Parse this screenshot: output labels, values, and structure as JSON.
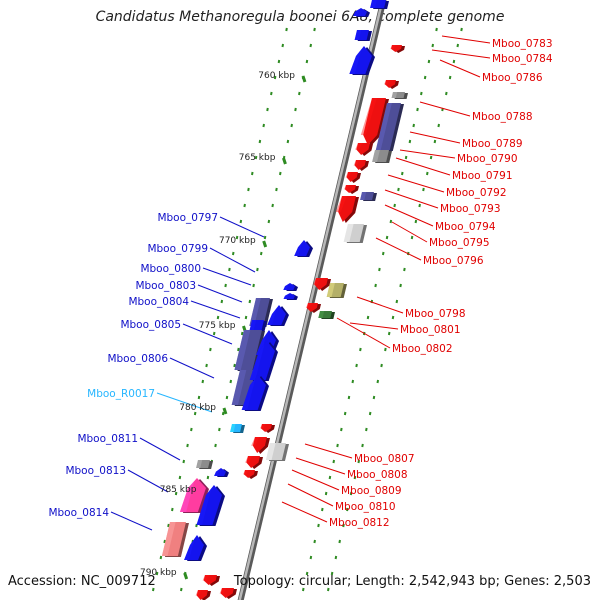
{
  "title": "Candidatus Methanoregula boonei 6A8, complete genome",
  "footer": {
    "accession": "Accession: NC_009712",
    "info": "Topology: circular; Length: 2,542,943 bp; Genes: 2,503"
  },
  "colors": {
    "backbone": "#8a8a8a",
    "tick": "#2e8b22",
    "plus_label": "#1010c8",
    "minus_label": "#e00000",
    "rna_label": "#26b6ff",
    "plus_gene": "#1414ee",
    "minus_gene": "#ee1010",
    "cog_purple": "#4e4e98",
    "cog_gray": "#8c8c8c",
    "cog_light": "#cfcfcf",
    "cog_olive": "#b4b068",
    "cog_green": "#3a7a3a",
    "cog_pink": "#ff3ca0",
    "cog_rose": "#f08080",
    "rna": "#26b6ff"
  },
  "scale_labels": [
    "760 kbp",
    "765 kbp",
    "770 kbp",
    "775 kbp",
    "780 kbp",
    "785 kbp",
    "790 kbp"
  ],
  "plus_labels": [
    "Mboo_0797",
    "Mboo_0799",
    "Mboo_0800",
    "Mboo_0803",
    "Mboo_0804",
    "Mboo_0805",
    "Mboo_0806",
    "Mboo_0811",
    "Mboo_0813",
    "Mboo_0814"
  ],
  "rna_labels": [
    "Mboo_R0017"
  ],
  "minus_labels": [
    "Mboo_0783",
    "Mboo_0784",
    "Mboo_0786",
    "Mboo_0788",
    "Mboo_0789",
    "Mboo_0790",
    "Mboo_0791",
    "Mboo_0792",
    "Mboo_0793",
    "Mboo_0794",
    "Mboo_0795",
    "Mboo_0796",
    "Mboo_0798",
    "Mboo_0801",
    "Mboo_0802",
    "Mboo_0807",
    "Mboo_0808",
    "Mboo_0809",
    "Mboo_0810",
    "Mboo_0812"
  ]
}
